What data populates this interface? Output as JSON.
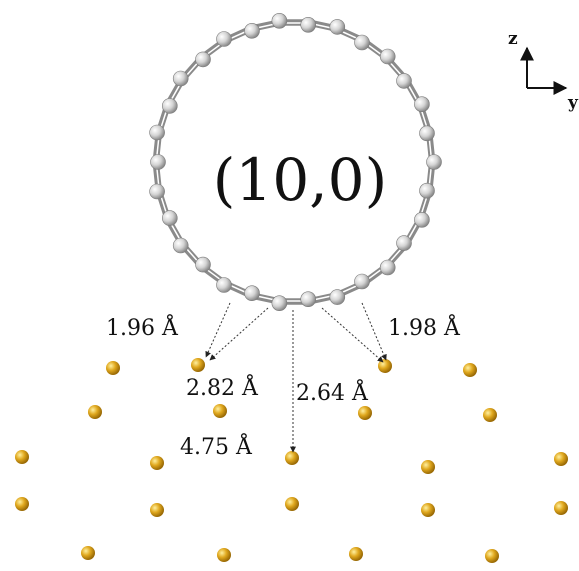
{
  "nanotube": {
    "label": "(10,0)",
    "atom_color": "#d4d4d4",
    "bond_color": "#8a8a8a"
  },
  "axes": {
    "vertical": "z",
    "horizontal": "y"
  },
  "distances": [
    {
      "id": "left",
      "text": "1.96 Å"
    },
    {
      "id": "right",
      "text": "1.98 Å"
    },
    {
      "id": "mid-left",
      "text": "2.82 Å"
    },
    {
      "id": "mid-right",
      "text": "2.64 Å"
    },
    {
      "id": "vertical",
      "text": "4.75 Å"
    }
  ],
  "surface": {
    "atom_color": "#d9a21b"
  }
}
